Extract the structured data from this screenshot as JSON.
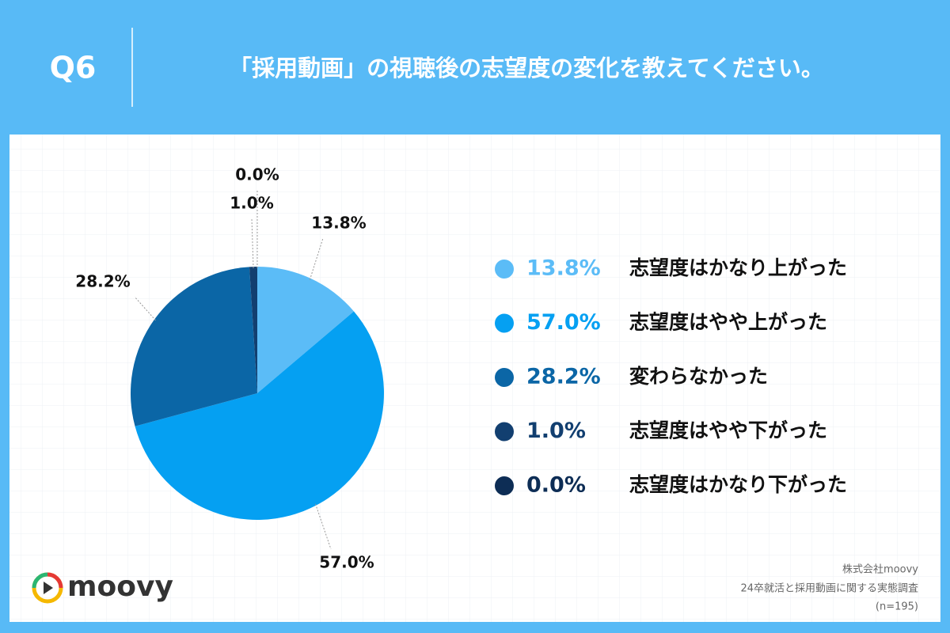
{
  "header": {
    "label": "Q6"
  },
  "chart_data": {
    "type": "pie",
    "title": "「採用動画」の視聴後の志望度の変化を教えてください。",
    "categories": [
      "志望度はかなり上がった",
      "志望度はやや上がった",
      "変わらなかった",
      "志望度はやや下がった",
      "志望度はかなり下がった"
    ],
    "values": [
      13.8,
      57.0,
      28.2,
      1.0,
      0.0
    ],
    "value_labels": [
      "13.8%",
      "57.0%",
      "28.2%",
      "1.0%",
      "0.0%"
    ],
    "colors": [
      "#5bbcf7",
      "#05a0f2",
      "#0b66a6",
      "#123f70",
      "#0d2d55"
    ]
  },
  "footer": {
    "company": "株式会社moovy",
    "survey": "24卒就活と採用動画に関する実態調査",
    "sample": "(n=195)",
    "logo": "moovy"
  }
}
